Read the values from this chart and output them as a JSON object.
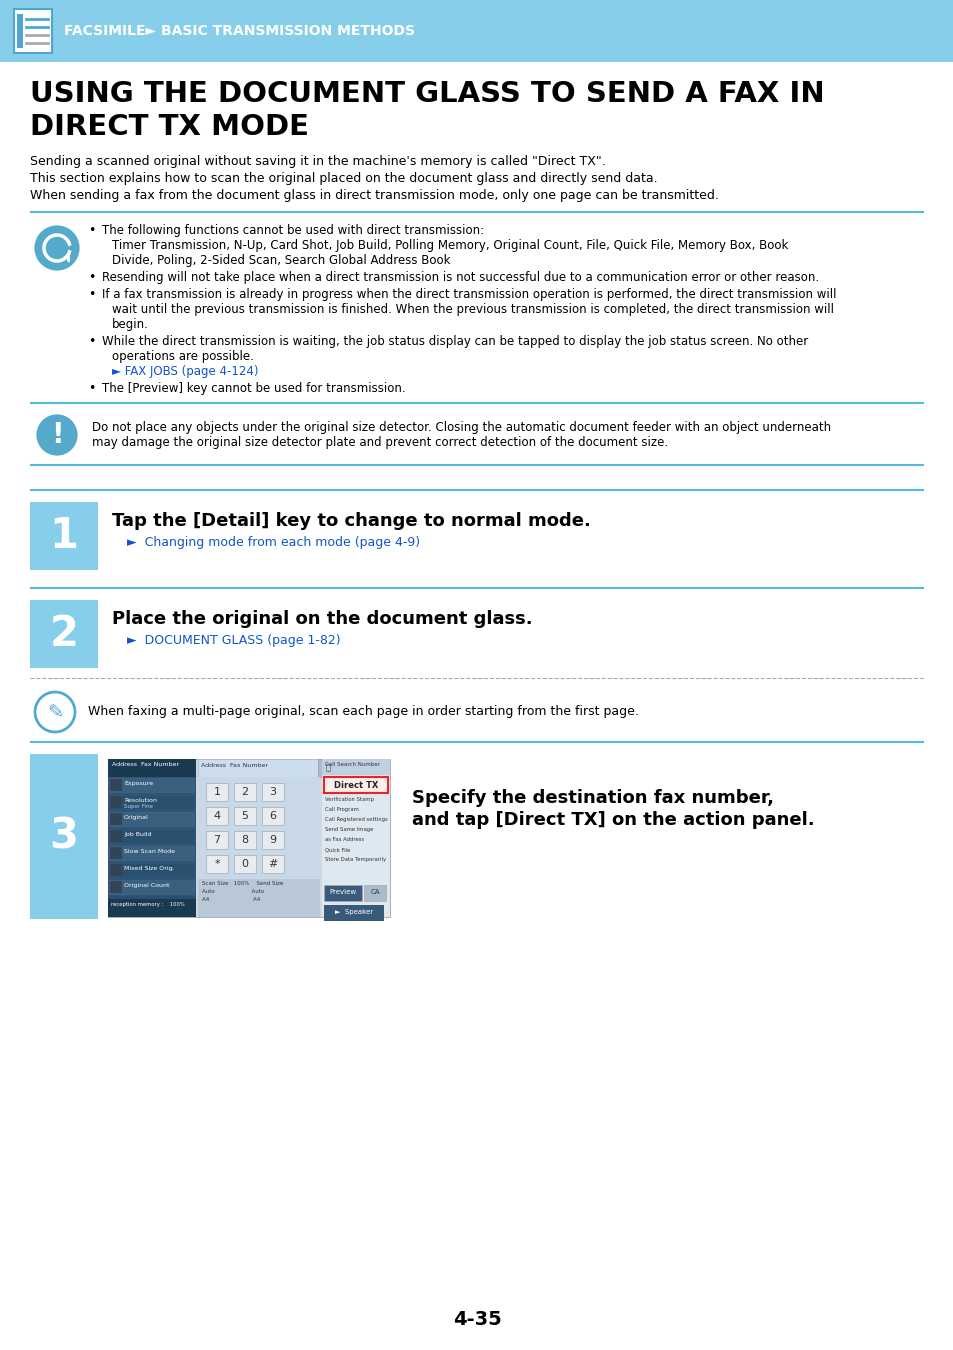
{
  "header_bg": "#87CEEB",
  "header_text": "FACSIMILE► BASIC TRANSMISSION METHODS",
  "header_text_color": "#FFFFFF",
  "page_bg": "#FFFFFF",
  "title_line1": "USING THE DOCUMENT GLASS TO SEND A FAX IN",
  "title_line2": "DIRECT TX MODE",
  "title_color": "#000000",
  "intro_lines": [
    "Sending a scanned original without saving it in the machine's memory is called \"Direct TX\".",
    "This section explains how to scan the original placed on the document glass and directly send data.",
    "When sending a fax from the document glass in direct transmission mode, only one page can be transmitted."
  ],
  "link_color": "#1155CC",
  "separator_color": "#55BBDD",
  "bullet_items": [
    {
      "text": "The following functions cannot be used with direct transmission:",
      "continuation": "Timer Transmission, N-Up, Card Shot, Job Build, Polling Memory, Original Count, File, Quick File, Memory Box, Book\nDivide, Poling, 2-Sided Scan, Search Global Address Book"
    },
    {
      "text": "Resending will not take place when a direct transmission is not successful due to a communication error or other reason.",
      "continuation": ""
    },
    {
      "text": "If a fax transmission is already in progress when the direct transmission operation is performed, the direct transmission will",
      "continuation": "wait until the previous transmission is finished. When the previous transmission is completed, the direct transmission will\nbegin."
    },
    {
      "text": "While the direct transmission is waiting, the job status display can be tapped to display the job status screen. No other",
      "continuation": "operations are possible.\n► FAX JOBS (page 4-124)"
    },
    {
      "text": "The [Preview] key cannot be used for transmission.",
      "continuation": ""
    }
  ],
  "warning_text_line1": "Do not place any objects under the original size detector. Closing the automatic document feeder with an object underneath",
  "warning_text_line2": "may damage the original size detector plate and prevent correct detection of the document size.",
  "step1_title": "Tap the [Detail] key to change to normal mode.",
  "step1_link": "►  Changing mode from each mode (page 4-9)",
  "step2_title": "Place the original on the document glass.",
  "step2_link": "►  DOCUMENT GLASS (page 1-82)",
  "scan_note": "When faxing a multi-page original, scan each page in order starting from the first page.",
  "step3_text1": "Specify the destination fax number,",
  "step3_text2": "and tap [Direct TX] on the action panel.",
  "page_number": "4-35",
  "step_box_color": "#87CEEB",
  "step_num_color": "#FFFFFF",
  "icon_blue": "#55AACC",
  "icon_light": "#88CCEE"
}
